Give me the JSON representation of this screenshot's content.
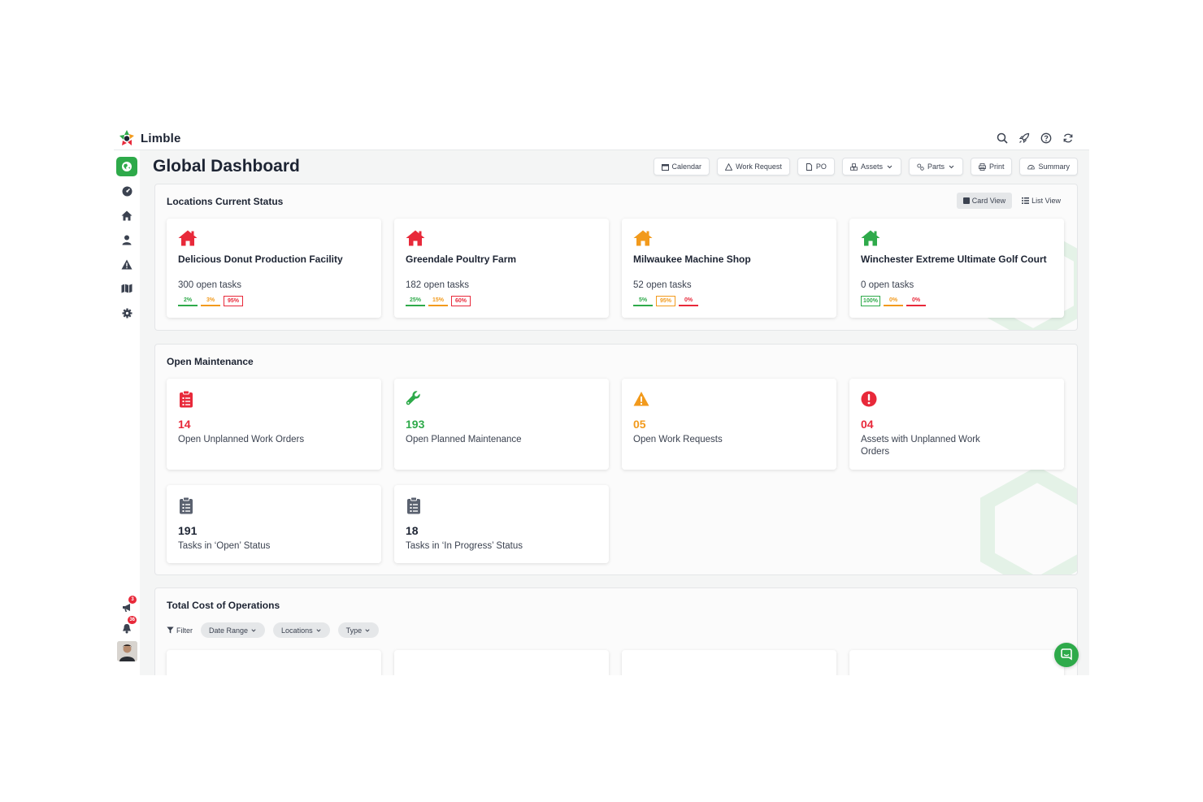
{
  "app": {
    "name": "Limble"
  },
  "colors": {
    "brand": "#2eaa4a",
    "danger": "#e8293a",
    "warning": "#f29a1c",
    "neutral": "#5b6270"
  },
  "top_icons": [
    "search-icon",
    "rocket-icon",
    "help-icon",
    "refresh-icon"
  ],
  "sidebar": {
    "items": [
      "globe-icon",
      "dashboard-icon",
      "home-icon",
      "user-icon",
      "warning-icon",
      "map-icon",
      "gear-icon"
    ],
    "announcements_badge": "3",
    "notifications_badge": "36"
  },
  "page": {
    "title": "Global Dashboard"
  },
  "toolbar": {
    "calendar": "Calendar",
    "work_request": "Work Request",
    "po": "PO",
    "assets": "Assets",
    "parts": "Parts",
    "print": "Print",
    "summary": "Summary"
  },
  "locations": {
    "title": "Locations Current Status",
    "card_view": "Card View",
    "list_view": "List View",
    "cards": [
      {
        "name": "Delicious Donut Production Facility",
        "tasks": "300 open tasks",
        "color": "#e8293a",
        "pcts": [
          {
            "v": "2%",
            "c": "green",
            "boxed": false
          },
          {
            "v": "3%",
            "c": "orange",
            "boxed": false
          },
          {
            "v": "95%",
            "c": "red",
            "boxed": true
          }
        ]
      },
      {
        "name": "Greendale Poultry Farm",
        "tasks": "182 open tasks",
        "color": "#e8293a",
        "pcts": [
          {
            "v": "25%",
            "c": "green",
            "boxed": false
          },
          {
            "v": "15%",
            "c": "orange",
            "boxed": false
          },
          {
            "v": "60%",
            "c": "red",
            "boxed": true
          }
        ]
      },
      {
        "name": "Milwaukee Machine Shop",
        "tasks": "52 open tasks",
        "color": "#f29a1c",
        "pcts": [
          {
            "v": "5%",
            "c": "green",
            "boxed": false
          },
          {
            "v": "95%",
            "c": "orange",
            "boxed": true
          },
          {
            "v": "0%",
            "c": "red",
            "boxed": false
          }
        ]
      },
      {
        "name": "Winchester Extreme Ultimate Golf Court",
        "tasks": "0 open tasks",
        "color": "#2eaa4a",
        "pcts": [
          {
            "v": "100%",
            "c": "green",
            "boxed": true
          },
          {
            "v": "0%",
            "c": "orange",
            "boxed": false
          },
          {
            "v": "0%",
            "c": "red",
            "boxed": false
          }
        ]
      }
    ]
  },
  "maintenance": {
    "title": "Open Maintenance",
    "cards": [
      {
        "count": "14",
        "label": "Open Unplanned Work Orders",
        "color": "#e8293a",
        "icon": "clipboard-list-icon"
      },
      {
        "count": "193",
        "label": "Open Planned Maintenance",
        "color": "#2eaa4a",
        "icon": "wrench-icon"
      },
      {
        "count": "05",
        "label": "Open Work Requests",
        "color": "#f29a1c",
        "icon": "warning-icon"
      },
      {
        "count": "04",
        "label": "Assets with Unplanned Work Orders",
        "color": "#e8293a",
        "icon": "alert-circle-icon"
      },
      {
        "count": "191",
        "label": "Tasks in ‘Open’ Status",
        "color": "#1d2433",
        "icon": "clipboard-list-icon"
      },
      {
        "count": "18",
        "label": "Tasks in ‘In Progress’ Status",
        "color": "#1d2433",
        "icon": "clipboard-list-icon"
      }
    ]
  },
  "cost": {
    "title": "Total Cost of Operations",
    "filter_label": "Filter",
    "chips": [
      "Date Range",
      "Locations",
      "Type"
    ]
  }
}
